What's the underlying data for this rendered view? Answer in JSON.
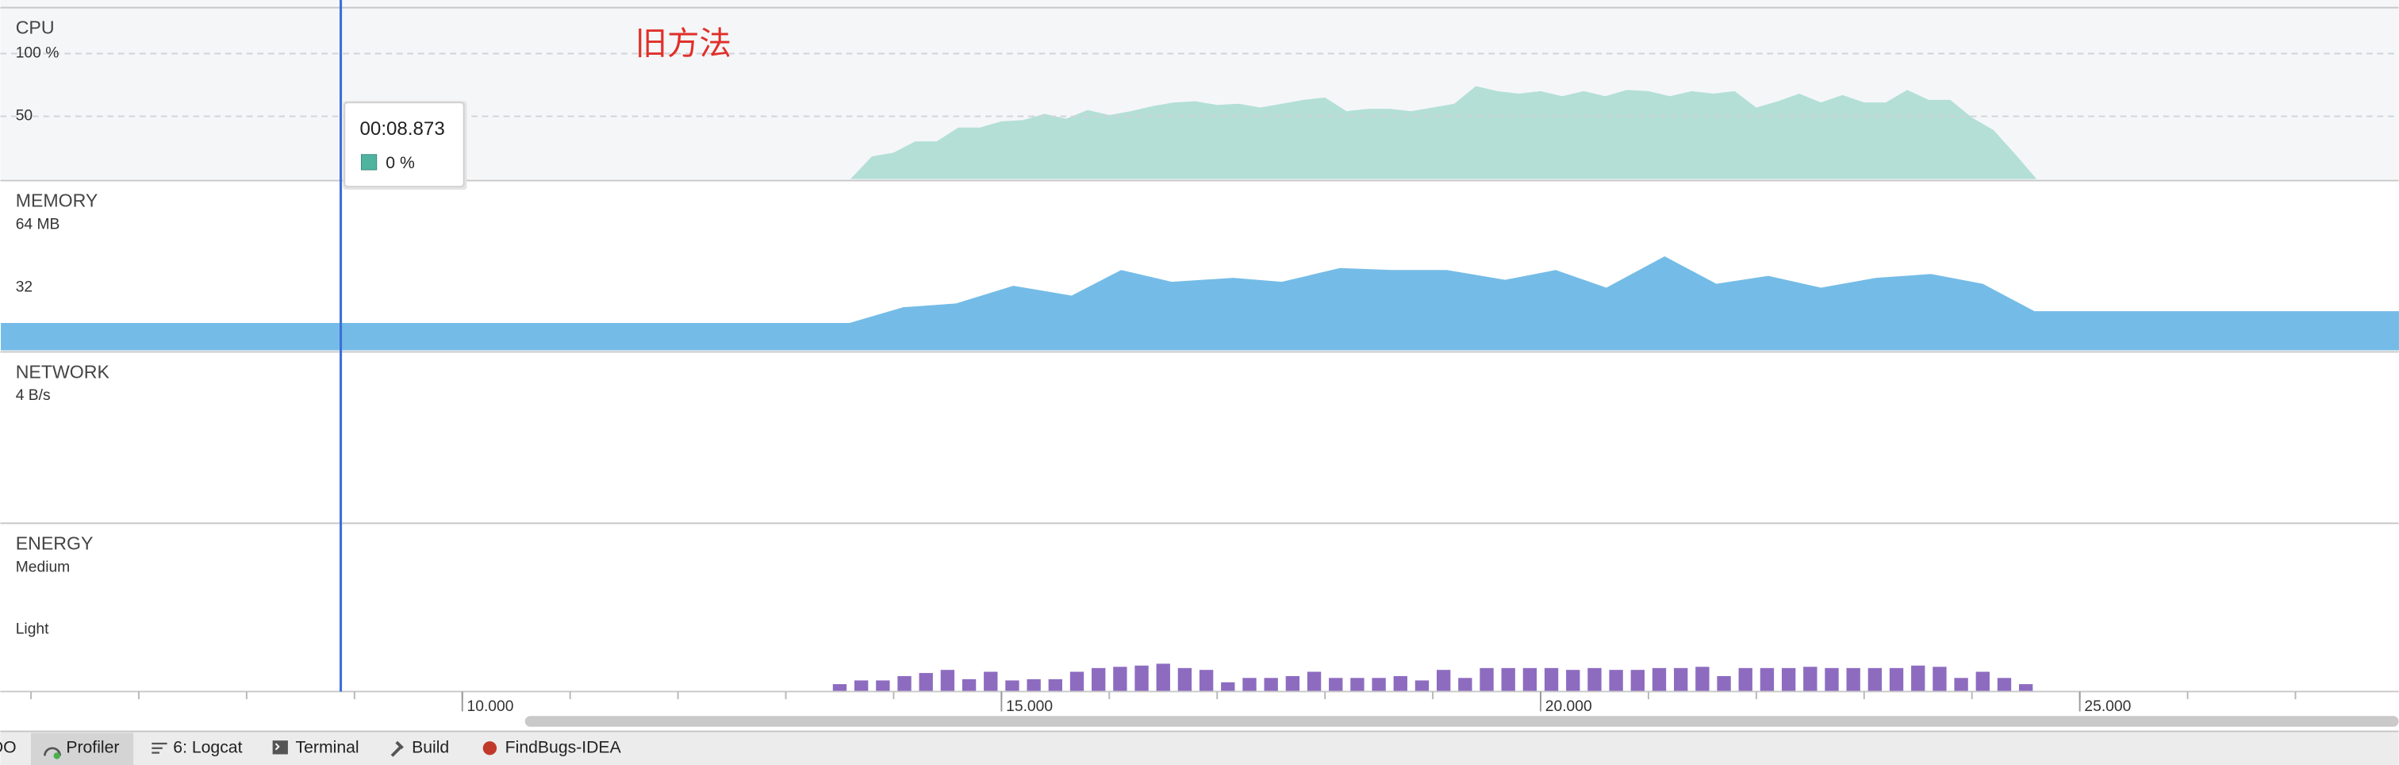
{
  "timeline": {
    "xlim": [
      5.716,
      27.957
    ],
    "xticks": [
      {
        "value": 10,
        "label": "10.000"
      },
      {
        "value": 15,
        "label": "15.000"
      },
      {
        "value": 20,
        "label": "20.000"
      },
      {
        "value": 25,
        "label": "25.000"
      }
    ],
    "minor_xticks": [
      6,
      7,
      8,
      9,
      10,
      11,
      12,
      13,
      14,
      15,
      16,
      17,
      18,
      19,
      20,
      21,
      22,
      23,
      24,
      25,
      26,
      27
    ],
    "cursor": 8.873,
    "cursor_color": "#3b6fd8"
  },
  "annotation": "旧方法",
  "tooltip": {
    "time": "00:08.873",
    "color": "#4fb3a0",
    "value": 0,
    "value_label": "0 %"
  },
  "lanes": [
    {
      "type": "area",
      "title": "CPU",
      "color": "#b3dfd7",
      "background": "#f5f6f8",
      "grid": true,
      "ylim": [
        0,
        136.6
      ],
      "yticks": [
        {
          "value": 100,
          "label": "100 %"
        },
        50
      ],
      "x": [
        13.6,
        13.8,
        14.0,
        14.2,
        14.4,
        14.6,
        14.8,
        15.0,
        15.2,
        15.4,
        15.6,
        15.8,
        16.0,
        16.2,
        16.4,
        16.6,
        16.8,
        17.0,
        17.2,
        17.4,
        17.6,
        17.8,
        18.0,
        18.2,
        18.4,
        18.6,
        18.8,
        19.0,
        19.2,
        19.4,
        19.6,
        19.8,
        20.0,
        20.2,
        20.4,
        20.6,
        20.8,
        21.0,
        21.2,
        21.4,
        21.6,
        21.8,
        22.0,
        22.2,
        22.4,
        22.6,
        22.8,
        23.0,
        23.2,
        23.4,
        23.6,
        23.8,
        24.0,
        24.2,
        24.4,
        24.6
      ],
      "values": [
        0,
        18,
        21,
        30,
        30,
        41,
        41,
        46,
        47,
        52,
        48,
        55,
        51,
        54,
        58,
        61,
        62,
        59,
        60,
        57,
        60,
        63,
        65,
        54,
        56,
        56,
        54,
        57,
        60,
        74,
        70,
        68,
        70,
        66,
        70,
        66,
        71,
        70,
        66,
        70,
        68,
        70,
        57,
        62,
        68,
        61,
        67,
        61,
        61,
        71,
        63,
        63,
        49,
        39,
        20,
        0
      ]
    },
    {
      "type": "area",
      "title": "MEMORY",
      "color": "#74bce7",
      "background": "#ffffff",
      "grid": false,
      "ylim": [
        0,
        86.7
      ],
      "yticks": [
        {
          "value": 64,
          "label": "64 MB"
        },
        32
      ],
      "x": [
        5.72,
        13.59,
        14.09,
        14.58,
        15.11,
        15.65,
        16.11,
        16.58,
        17.15,
        17.6,
        18.14,
        18.62,
        19.13,
        19.67,
        20.14,
        20.61,
        21.15,
        21.63,
        22.11,
        22.6,
        23.11,
        23.62,
        24.1,
        24.58,
        27.96
      ],
      "values": [
        14,
        14,
        22,
        24,
        33,
        28,
        41,
        35,
        37,
        35,
        42,
        41,
        41,
        36,
        41,
        32,
        48,
        34,
        38,
        32,
        37,
        39,
        34,
        20,
        20
      ]
    },
    {
      "type": "none",
      "title": "NETWORK",
      "background": "#ffffff",
      "grid": false,
      "ylim": [
        0,
        5.4
      ],
      "yticks": [
        {
          "value": 4,
          "label": "4 B/s"
        }
      ]
    },
    {
      "type": "bar",
      "title": "ENERGY",
      "color": "#8d6cc0",
      "background": "#ffffff",
      "grid": false,
      "ylim": [
        0,
        2.72
      ],
      "yticks": [
        {
          "value": 2,
          "label": "Medium"
        },
        {
          "value": 1,
          "label": "Light"
        }
      ],
      "x": [
        13.5,
        13.7,
        13.9,
        14.1,
        14.3,
        14.5,
        14.7,
        14.9,
        15.1,
        15.3,
        15.5,
        15.7,
        15.9,
        16.1,
        16.3,
        16.5,
        16.7,
        16.9,
        17.1,
        17.3,
        17.5,
        17.7,
        17.9,
        18.1,
        18.3,
        18.5,
        18.7,
        18.9,
        19.1,
        19.3,
        19.5,
        19.7,
        19.9,
        20.1,
        20.3,
        20.5,
        20.7,
        20.9,
        21.1,
        21.3,
        21.5,
        21.7,
        21.9,
        22.1,
        22.3,
        22.5,
        22.7,
        22.9,
        23.1,
        23.3,
        23.5,
        23.7,
        23.9,
        24.1,
        24.3,
        24.5
      ],
      "values": [
        0.12,
        0.18,
        0.18,
        0.25,
        0.3,
        0.35,
        0.2,
        0.32,
        0.18,
        0.2,
        0.2,
        0.32,
        0.38,
        0.4,
        0.42,
        0.45,
        0.38,
        0.35,
        0.15,
        0.22,
        0.22,
        0.25,
        0.32,
        0.22,
        0.22,
        0.22,
        0.25,
        0.18,
        0.35,
        0.22,
        0.38,
        0.38,
        0.38,
        0.38,
        0.35,
        0.38,
        0.35,
        0.35,
        0.38,
        0.38,
        0.4,
        0.25,
        0.38,
        0.38,
        0.38,
        0.4,
        0.38,
        0.38,
        0.38,
        0.38,
        0.42,
        0.4,
        0.22,
        0.32,
        0.22,
        0.12
      ]
    }
  ],
  "toolbar": [
    "DO",
    "Profiler",
    "6: Logcat",
    "Terminal",
    "Build",
    "FindBugs-IDEA"
  ]
}
